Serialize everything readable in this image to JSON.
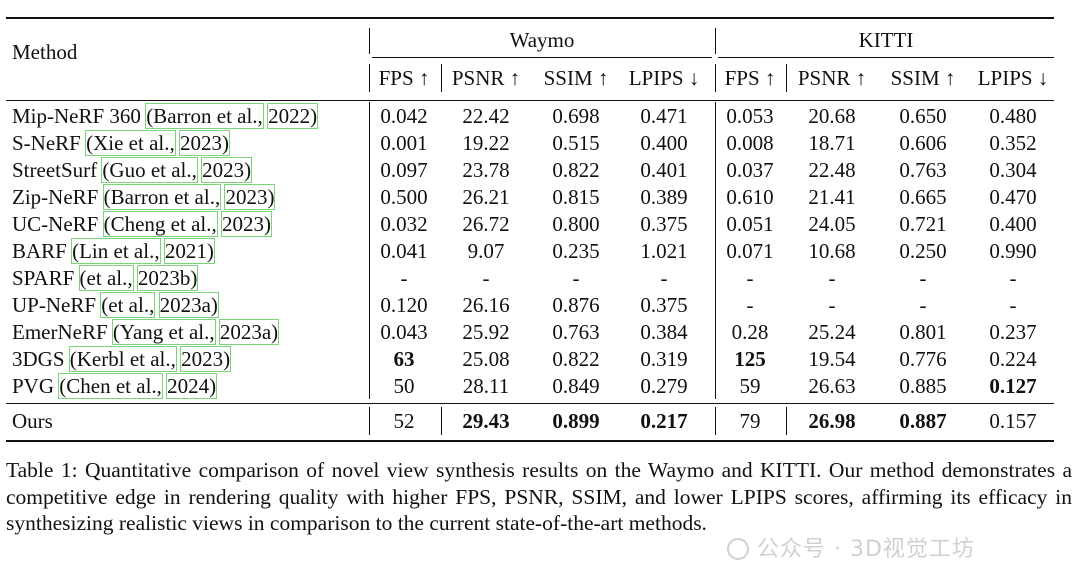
{
  "table": {
    "method_header": "Method",
    "groups": [
      "Waymo",
      "KITTI"
    ],
    "subheaders": [
      "FPS ↑",
      "PSNR ↑",
      "SSIM ↑",
      "LPIPS ↓",
      "FPS ↑",
      "PSNR ↑",
      "SSIM ↑",
      "LPIPS ↓"
    ],
    "rows": [
      {
        "name": "Mip-NeRF 360 ",
        "cite_a": "(Barron et al.,",
        "cite_b": "2022)",
        "values": [
          "0.042",
          "22.42",
          "0.698",
          "0.471",
          "0.053",
          "20.68",
          "0.650",
          "0.480"
        ],
        "bold": []
      },
      {
        "name": "S-NeRF ",
        "cite_a": "(Xie et al.,",
        "cite_b": "2023)",
        "values": [
          "0.001",
          "19.22",
          "0.515",
          "0.400",
          "0.008",
          "18.71",
          "0.606",
          "0.352"
        ],
        "bold": []
      },
      {
        "name": "StreetSurf ",
        "cite_a": "(Guo et al.,",
        "cite_b": "2023)",
        "values": [
          "0.097",
          "23.78",
          "0.822",
          "0.401",
          "0.037",
          "22.48",
          "0.763",
          "0.304"
        ],
        "bold": []
      },
      {
        "name": "Zip-NeRF ",
        "cite_a": "(Barron et al.,",
        "cite_b": "2023)",
        "values": [
          "0.500",
          "26.21",
          "0.815",
          "0.389",
          "0.610",
          "21.41",
          "0.665",
          "0.470"
        ],
        "bold": []
      },
      {
        "name": "UC-NeRF ",
        "cite_a": "(Cheng et al.,",
        "cite_b": "2023)",
        "values": [
          "0.032",
          "26.72",
          "0.800",
          "0.375",
          "0.051",
          "24.05",
          "0.721",
          "0.400"
        ],
        "bold": []
      },
      {
        "name": "BARF ",
        "cite_a": "(Lin et al.,",
        "cite_b": "2021)",
        "values": [
          "0.041",
          "9.07",
          "0.235",
          "1.021",
          "0.071",
          "10.68",
          "0.250",
          "0.990"
        ],
        "bold": []
      },
      {
        "name": "SPARF ",
        "cite_a": "(et al.,",
        "cite_b": "2023b)",
        "values": [
          "-",
          "-",
          "-",
          "-",
          "-",
          "-",
          "-",
          "-"
        ],
        "bold": []
      },
      {
        "name": "UP-NeRF ",
        "cite_a": "(et al.,",
        "cite_b": "2023a)",
        "values": [
          "0.120",
          "26.16",
          "0.876",
          "0.375",
          "-",
          "-",
          "-",
          "-"
        ],
        "bold": []
      },
      {
        "name": "EmerNeRF ",
        "cite_a": "(Yang et al.,",
        "cite_b": "2023a)",
        "values": [
          "0.043",
          "25.92",
          "0.763",
          "0.384",
          "0.28",
          "25.24",
          "0.801",
          "0.237"
        ],
        "bold": []
      },
      {
        "name": "3DGS ",
        "cite_a": "(Kerbl et al.,",
        "cite_b": "2023)",
        "values": [
          "63",
          "25.08",
          "0.822",
          "0.319",
          "125",
          "19.54",
          "0.776",
          "0.224"
        ],
        "bold": [
          0,
          4
        ]
      },
      {
        "name": "PVG ",
        "cite_a": "(Chen et al.,",
        "cite_b": "2024)",
        "values": [
          "50",
          "28.11",
          "0.849",
          "0.279",
          "59",
          "26.63",
          "0.885",
          "0.127"
        ],
        "bold": [
          7
        ]
      }
    ],
    "ours": {
      "name": "Ours",
      "values": [
        "52",
        "29.43",
        "0.899",
        "0.217",
        "79",
        "26.98",
        "0.887",
        "0.157"
      ],
      "bold": [
        1,
        2,
        3,
        5,
        6
      ]
    }
  },
  "caption": "Table 1: Quantitative comparison of novel view synthesis results on the Waymo and KITTI. Our method demonstrates a competitive edge in rendering quality with higher FPS, PSNR, SSIM, and lower LPIPS scores, affirming its efficacy in synthesizing realistic views in comparison to the current state-of-the-art methods.",
  "watermark": "公众号 · 3D视觉工坊"
}
